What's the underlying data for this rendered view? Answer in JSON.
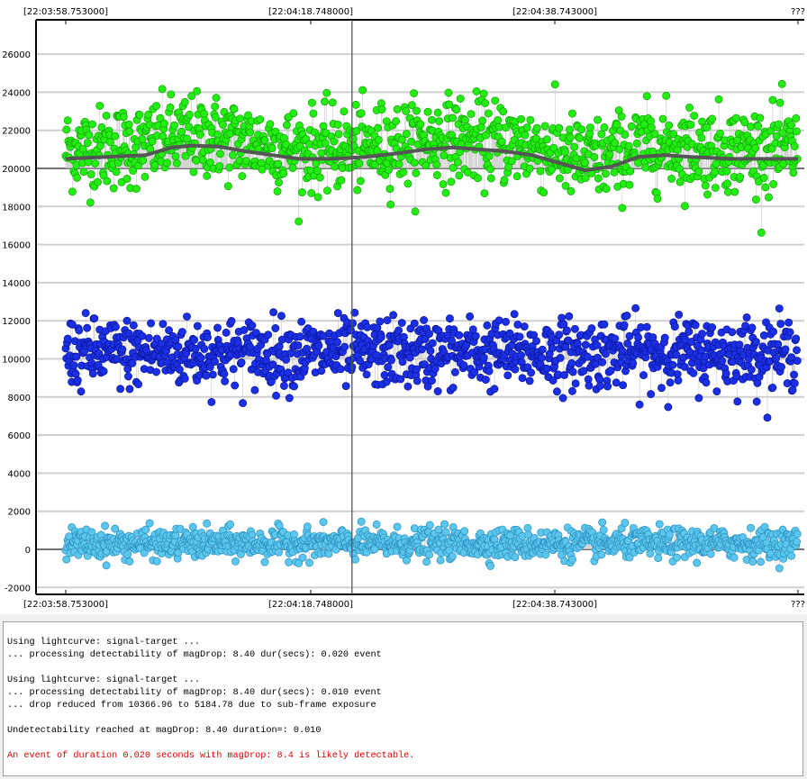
{
  "chart_data": {
    "type": "scatter",
    "title": "",
    "xlabel": "",
    "ylabel": "",
    "x_tick_labels": [
      "[22:03:58.753000]",
      "[22:04:18.748000]",
      "[22:04:38.743000]",
      "???"
    ],
    "y_tick_labels": [
      "-2000",
      "0",
      "2000",
      "4000",
      "6000",
      "8000",
      "10000",
      "12000",
      "14000",
      "16000",
      "18000",
      "20000",
      "22000",
      "24000",
      "26000"
    ],
    "y_ticks": [
      -2000,
      0,
      2000,
      4000,
      6000,
      8000,
      10000,
      12000,
      14000,
      16000,
      18000,
      20000,
      22000,
      24000,
      26000
    ],
    "ylim": [
      -2300,
      26800
    ],
    "x_range_points": [
      0,
      1100
    ],
    "cursor_point": 430,
    "grid": "horizontal",
    "reference_lines": [
      0,
      20000
    ],
    "series": [
      {
        "color": "#22ee11",
        "stroke": "#12a008",
        "baseline": 20000,
        "center": 21000,
        "spread": 1450,
        "count": 1100,
        "has_smoothed_line": true,
        "smoothed": {
          "color": "#555555",
          "points": [
            [
              0,
              20500
            ],
            [
              60,
              20600
            ],
            [
              90,
              20650
            ],
            [
              120,
              20700
            ],
            [
              160,
              21100
            ],
            [
              190,
              21200
            ],
            [
              230,
              21150
            ],
            [
              270,
              20900
            ],
            [
              310,
              20700
            ],
            [
              350,
              20500
            ],
            [
              400,
              20500
            ],
            [
              450,
              20600
            ],
            [
              500,
              20800
            ],
            [
              540,
              21000
            ],
            [
              580,
              21100
            ],
            [
              620,
              21000
            ],
            [
              660,
              20900
            ],
            [
              700,
              20700
            ],
            [
              740,
              20300
            ],
            [
              780,
              19900
            ],
            [
              820,
              20100
            ],
            [
              860,
              20600
            ],
            [
              900,
              20700
            ],
            [
              940,
              20600
            ],
            [
              1000,
              20500
            ],
            [
              1060,
              20500
            ],
            [
              1100,
              20500
            ]
          ]
        }
      },
      {
        "color": "#1a2fe6",
        "stroke": "#0a1590",
        "baseline": 10000,
        "center": 10300,
        "spread": 1200,
        "count": 1100,
        "has_smoothed_line": false
      },
      {
        "color": "#5bc6ee",
        "stroke": "#2a8fbf",
        "baseline": 0,
        "center": 300,
        "spread": 520,
        "count": 1100,
        "has_smoothed_line": false
      }
    ]
  },
  "log": {
    "lines": [
      {
        "text": "Using lightcurve: signal-target ...",
        "color": "black"
      },
      {
        "text": "... processing detectability of magDrop: 8.40 dur(secs): 0.020 event",
        "color": "black"
      },
      {
        "text": "",
        "color": "black"
      },
      {
        "text": "Using lightcurve: signal-target ...",
        "color": "black"
      },
      {
        "text": "... processing detectability of magDrop: 8.40 dur(secs): 0.010 event",
        "color": "black"
      },
      {
        "text": "... drop reduced from 10366.96 to 5184.78 due to sub-frame exposure",
        "color": "black"
      },
      {
        "text": "",
        "color": "black"
      },
      {
        "text": "Undetectability reached at magDrop: 8.40 duration=: 0.010",
        "color": "black"
      },
      {
        "text": "",
        "color": "black"
      },
      {
        "text": "An event of duration 0.020 seconds with magDrop: 8.4 is likely detectable.",
        "color": "red"
      }
    ]
  }
}
